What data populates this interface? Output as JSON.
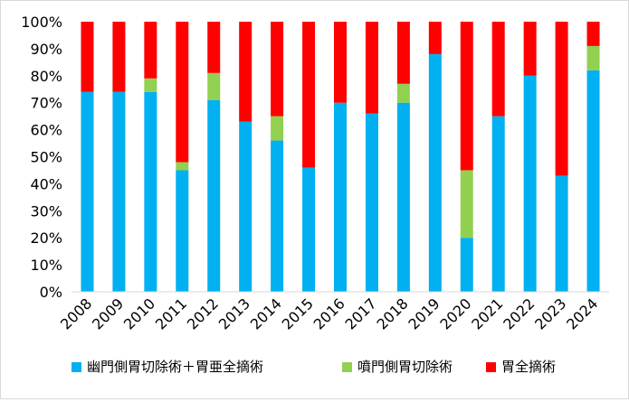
{
  "chart_data": {
    "type": "bar",
    "stacked": true,
    "percent": true,
    "categories": [
      "2008",
      "2009",
      "2010",
      "2011",
      "2012",
      "2013",
      "2014",
      "2015",
      "2016",
      "2017",
      "2018",
      "2019",
      "2020",
      "2021",
      "2022",
      "2023",
      "2024"
    ],
    "series": [
      {
        "name": "幽門側胃切除術＋胃亜全摘術",
        "color": "#00b0f0",
        "values": [
          74,
          74,
          74,
          45,
          71,
          63,
          56,
          46,
          70,
          66,
          70,
          88,
          20,
          65,
          80,
          43,
          82
        ]
      },
      {
        "name": "噴門側胃切除術",
        "color": "#92d050",
        "values": [
          0,
          0,
          5,
          3,
          10,
          0,
          9,
          0,
          0,
          0,
          7,
          0,
          25,
          0,
          0,
          0,
          9
        ]
      },
      {
        "name": "胃全摘術",
        "color": "#ff0000",
        "values": [
          26,
          26,
          21,
          52,
          19,
          37,
          35,
          54,
          30,
          34,
          23,
          12,
          55,
          35,
          20,
          57,
          9
        ]
      }
    ],
    "y_ticks": [
      "0%",
      "10%",
      "20%",
      "30%",
      "40%",
      "50%",
      "60%",
      "70%",
      "80%",
      "90%",
      "100%"
    ],
    "ylim": [
      0,
      100
    ],
    "grid": false,
    "legend_position": "bottom",
    "title": "",
    "xlabel": "",
    "ylabel": ""
  }
}
